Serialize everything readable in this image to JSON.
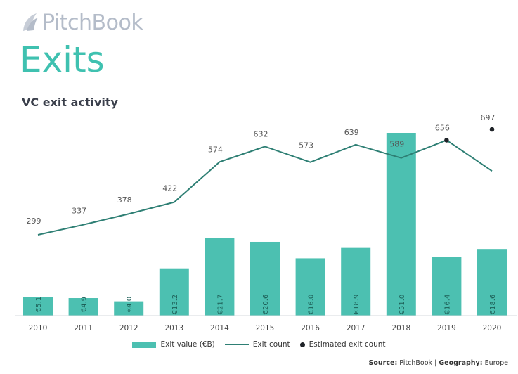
{
  "brand": {
    "logo_text": "PitchBook",
    "headline": "Exits"
  },
  "colors": {
    "bar": "#4cc0b1",
    "line": "#2e7f74",
    "estimate_dot": "#1f2328",
    "headline": "#3fc1b0",
    "logo": "#b4bcc9"
  },
  "chart_data": {
    "type": "bar+line",
    "title": "VC exit activity",
    "categories": [
      "2010",
      "2011",
      "2012",
      "2013",
      "2014",
      "2015",
      "2016",
      "2017",
      "2018",
      "2019",
      "2020"
    ],
    "series": [
      {
        "name": "Exit value (€B)",
        "type": "bar",
        "values": [
          5.1,
          4.9,
          4.0,
          13.2,
          21.7,
          20.6,
          16.0,
          18.9,
          51.0,
          16.4,
          18.6
        ],
        "labels": [
          "€5.1",
          "€4.9",
          "€4.0",
          "€13.2",
          "€21.7",
          "€20.6",
          "€16.0",
          "€18.9",
          "€51.0",
          "€16.4",
          "€18.6"
        ]
      },
      {
        "name": "Exit count",
        "type": "line",
        "values": [
          299,
          337,
          378,
          422,
          574,
          632,
          573,
          639,
          589,
          656,
          540
        ]
      },
      {
        "name": "Estimated exit count",
        "type": "scatter",
        "points": [
          {
            "x": "2019",
            "y": 656
          },
          {
            "x": "2020",
            "y": 697
          }
        ]
      }
    ],
    "count_labels": [
      "299",
      "337",
      "378",
      "422",
      "574",
      "632",
      "573",
      "639",
      "589",
      "656",
      "697"
    ],
    "legend_position": "bottom"
  },
  "legend": {
    "bar": "Exit value (€B)",
    "line": "Exit count",
    "dot": "Estimated exit count"
  },
  "source": {
    "source_label": "Source:",
    "source_value": "PitchBook",
    "sep": "|",
    "geo_label": "Geography:",
    "geo_value": "Europe"
  }
}
